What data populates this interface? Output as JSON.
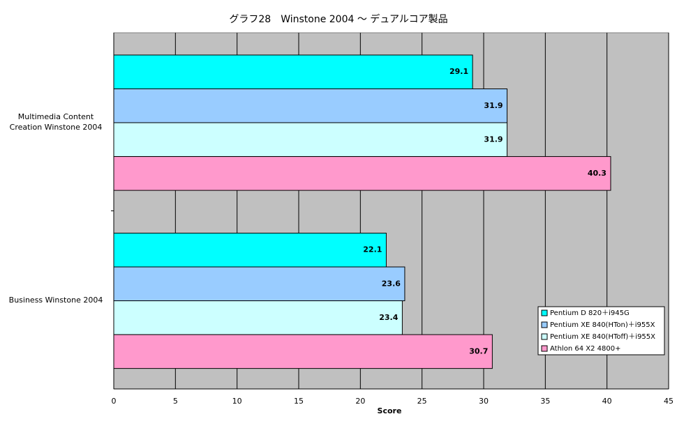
{
  "chart_data": {
    "type": "hbar",
    "title": "グラフ28　Winstone 2004 ～ デュアルコア製品",
    "x_label": "Score",
    "categories": [
      "Multimedia Content Creation Winstone 2004",
      "Business Winstone 2004"
    ],
    "series": [
      {
        "name": "Pentium D 820＋i945G",
        "color": "#00ffff",
        "values": [
          29.1,
          22.1
        ]
      },
      {
        "name": "Pentium XE 840(HTon)＋i955X",
        "color": "#99ccff",
        "values": [
          31.9,
          23.6
        ]
      },
      {
        "name": "Pentium XE 840(HToff)＋i955X",
        "color": "#ccffff",
        "values": [
          31.9,
          23.4
        ]
      },
      {
        "name": "Athlon 64 X2 4800+",
        "color": "#ff99cc",
        "values": [
          40.3,
          30.7
        ]
      }
    ],
    "xlim": [
      0,
      45
    ],
    "xticks": [
      0,
      5,
      10,
      15,
      20,
      25,
      30,
      35,
      40,
      45
    ],
    "grid": true,
    "legend": "lower right",
    "plot_background": "#c0c0c0"
  }
}
